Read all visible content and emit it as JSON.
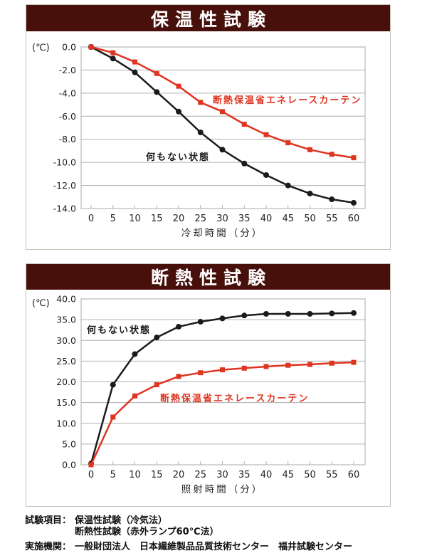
{
  "colors": {
    "title_bar_bg": "#47100b",
    "title_text": "#ffffff",
    "series_black": "#1b1b1b",
    "series_red": "#df3420",
    "grid": "#b0b0b0",
    "plot_border": "#a8a8a8",
    "panel_border": "#c9c0b7",
    "tick_text": "#222222"
  },
  "chart_data": [
    {
      "type": "line",
      "title": "保温性試験",
      "unit": "(℃)",
      "xlabel": "冷却時間（分）",
      "x": [
        0,
        5,
        10,
        15,
        20,
        25,
        30,
        35,
        40,
        45,
        50,
        55,
        60
      ],
      "ylim": [
        -14,
        0
      ],
      "ytick_step": 2,
      "grid": true,
      "legend": "inline-annotations",
      "series": [
        {
          "name": "何もない状態",
          "color": "#1b1b1b",
          "marker": "circle",
          "values": [
            0.0,
            -1.0,
            -2.2,
            -3.9,
            -5.6,
            -7.4,
            -8.9,
            -10.1,
            -11.1,
            -12.0,
            -12.7,
            -13.2,
            -13.5
          ]
        },
        {
          "name": "断熱保温省エネレースカーテン",
          "color": "#df3420",
          "marker": "square",
          "values": [
            0.0,
            -0.5,
            -1.3,
            -2.3,
            -3.4,
            -4.8,
            -5.6,
            -6.7,
            -7.6,
            -8.3,
            -8.9,
            -9.3,
            -9.6
          ]
        }
      ]
    },
    {
      "type": "line",
      "title": "断熱性試験",
      "unit": "(℃)",
      "xlabel": "照射時間（分）",
      "x": [
        0,
        5,
        10,
        15,
        20,
        25,
        30,
        35,
        40,
        45,
        50,
        55,
        60
      ],
      "ylim": [
        0,
        40
      ],
      "ytick_step": 5,
      "grid": true,
      "legend": "inline-annotations",
      "series": [
        {
          "name": "何もない状態",
          "color": "#1b1b1b",
          "marker": "circle",
          "values": [
            0.3,
            19.3,
            26.7,
            30.7,
            33.3,
            34.5,
            35.3,
            36.0,
            36.4,
            36.4,
            36.4,
            36.5,
            36.6
          ]
        },
        {
          "name": "断熱保温省エネレースカーテン",
          "color": "#df3420",
          "marker": "square",
          "values": [
            0.0,
            11.5,
            16.6,
            19.3,
            21.3,
            22.2,
            22.9,
            23.3,
            23.7,
            24.0,
            24.2,
            24.5,
            24.7
          ]
        }
      ]
    }
  ],
  "footer": {
    "row1_label": "試験項目：",
    "row1_text": "保温性試験（冷気法）",
    "row2_text": "断熱性試験（赤外ランプ60℃法）",
    "row3_label": "実施機関：",
    "row3_text": "一般財団法人　日本繊維製品品質技術センター　福井試験センター"
  }
}
